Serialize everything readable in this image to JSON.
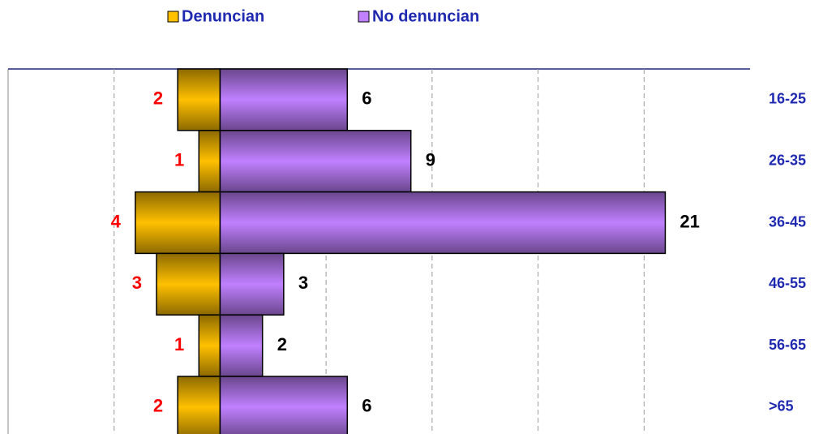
{
  "chart_data": {
    "type": "diverging-bar",
    "categories": [
      "16-25",
      "26-35",
      "36-45",
      "46-55",
      "56-65",
      ">65"
    ],
    "series": [
      {
        "name": "Denuncian",
        "color": "#ffc000",
        "label_color": "#ff0000",
        "direction": "left",
        "values": [
          2,
          1,
          4,
          3,
          1,
          2
        ]
      },
      {
        "name": "No denuncian",
        "color": "#c080ff",
        "label_color": "#000000",
        "direction": "right",
        "values": [
          6,
          9,
          21,
          3,
          2,
          6
        ]
      }
    ],
    "xlim": [
      -10,
      25
    ],
    "xticks": [
      -5,
      0,
      5,
      10,
      15,
      20
    ],
    "grid": true
  }
}
